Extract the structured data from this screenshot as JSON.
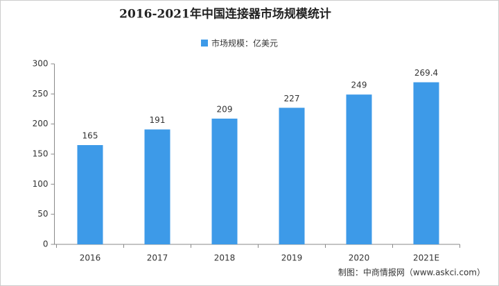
{
  "chart_data": {
    "type": "bar",
    "title": "2016-2021年中国连接器市场规模统计",
    "categories": [
      "2016",
      "2017",
      "2018",
      "2019",
      "2020",
      "2021E"
    ],
    "series": [
      {
        "name": "市场规模：亿美元",
        "color": "#3d9ae8",
        "values": [
          165,
          191,
          209,
          227,
          249,
          269.4
        ]
      }
    ],
    "ylim": [
      0,
      300
    ],
    "yticks": [
      0,
      50,
      100,
      150,
      200,
      250,
      300
    ],
    "grid": false,
    "source": "制图：中商情报网（www.askci.com）"
  }
}
